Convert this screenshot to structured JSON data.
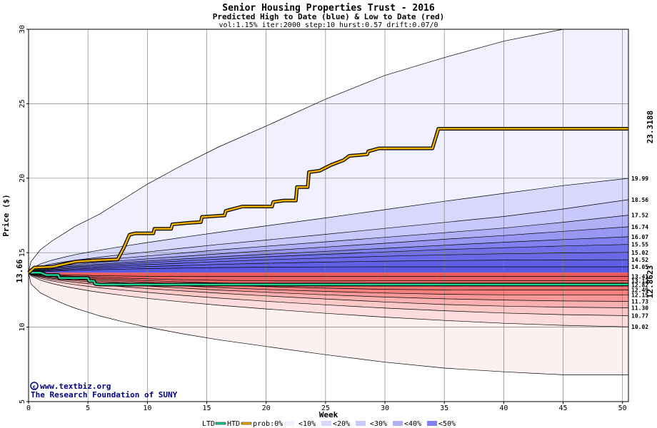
{
  "chart_data": {
    "type": "area",
    "title": "Senior Housing Properties Trust - 2016",
    "subtitle": "Predicted High to Date (blue) &  Low to Date (red)",
    "params": "vol:1.15% iter:2000 step:10 hurst:0.57 drift:0.07/0",
    "xlabel": "Week",
    "ylabel": "Price ($)",
    "xlim": [
      0,
      50.5
    ],
    "ylim": [
      5,
      30
    ],
    "x_ticks": [
      0,
      5,
      10,
      15,
      20,
      25,
      30,
      35,
      40,
      45,
      50
    ],
    "y_ticks": [
      5,
      10,
      15,
      20,
      25,
      30
    ],
    "grid": true,
    "start_price": 13.66,
    "start_price_label": "13.66",
    "right_labels": [
      "19.99",
      "18.56",
      "17.52",
      "16.74",
      "16.07",
      "15.55",
      "15.02",
      "14.52",
      "14.05",
      "13.41",
      "13.12",
      "12.82",
      "12.49",
      "12.15",
      "11.73",
      "11.30",
      "10.77",
      "10.02"
    ],
    "htd_end_label": "23.3188",
    "ltd_end_label": "12.8623",
    "band_weeks": [
      0,
      0.2,
      1,
      2,
      3,
      4,
      5,
      6,
      8,
      10,
      13,
      16,
      20,
      25,
      30,
      35,
      40,
      45,
      50.5
    ],
    "upper_bands": [
      {
        "prob": "outer",
        "values": [
          13.66,
          14.4,
          15.2,
          15.8,
          16.3,
          16.8,
          17.2,
          17.6,
          18.6,
          19.6,
          20.9,
          22.1,
          23.5,
          25.3,
          26.9,
          28.1,
          29.2,
          30.0,
          30.3
        ]
      },
      {
        "prob": "10%",
        "values": [
          13.66,
          13.9,
          14.25,
          14.5,
          14.7,
          14.88,
          15.03,
          15.17,
          15.43,
          15.68,
          16.03,
          16.37,
          16.8,
          17.33,
          17.89,
          18.45,
          18.98,
          19.5,
          19.99
        ]
      },
      {
        "prob": "20%",
        "values": [
          13.66,
          13.82,
          14.08,
          14.25,
          14.38,
          14.5,
          14.6,
          14.7,
          14.88,
          15.05,
          15.3,
          15.55,
          15.85,
          16.23,
          16.63,
          17.03,
          17.43,
          17.93,
          18.56
        ]
      },
      {
        "prob": "30%",
        "values": [
          13.66,
          13.78,
          13.98,
          14.12,
          14.23,
          14.33,
          14.41,
          14.49,
          14.64,
          14.78,
          14.98,
          15.18,
          15.43,
          15.73,
          16.03,
          16.34,
          16.65,
          17.04,
          17.52
        ]
      },
      {
        "prob": "40%",
        "values": [
          13.66,
          13.75,
          13.92,
          14.04,
          14.13,
          14.21,
          14.28,
          14.35,
          14.47,
          14.59,
          14.75,
          14.92,
          15.13,
          15.38,
          15.63,
          15.9,
          16.15,
          16.43,
          16.74
        ]
      },
      {
        "prob": "50%",
        "values": [
          13.66,
          13.73,
          13.87,
          13.97,
          14.05,
          14.12,
          14.18,
          14.24,
          14.34,
          14.44,
          14.58,
          14.72,
          14.89,
          15.09,
          15.29,
          15.5,
          15.7,
          15.88,
          16.07
        ]
      },
      {
        "prob": "60%",
        "values": [
          13.66,
          13.71,
          13.83,
          13.92,
          13.99,
          14.05,
          14.1,
          14.15,
          14.24,
          14.33,
          14.45,
          14.57,
          14.72,
          14.89,
          15.05,
          15.21,
          15.33,
          15.45,
          15.55
        ]
      },
      {
        "prob": "70%",
        "values": [
          13.66,
          13.7,
          13.79,
          13.86,
          13.92,
          13.97,
          14.01,
          14.05,
          14.13,
          14.2,
          14.3,
          14.4,
          14.52,
          14.64,
          14.76,
          14.85,
          14.93,
          14.98,
          15.02
        ]
      },
      {
        "prob": "80%",
        "values": [
          13.66,
          13.68,
          13.75,
          13.81,
          13.86,
          13.9,
          13.93,
          13.96,
          14.02,
          14.07,
          14.14,
          14.21,
          14.29,
          14.37,
          14.43,
          14.47,
          14.5,
          14.51,
          14.52
        ]
      },
      {
        "prob": "90%",
        "values": [
          13.66,
          13.67,
          13.71,
          13.75,
          13.79,
          13.82,
          13.84,
          13.86,
          13.9,
          13.93,
          13.97,
          14.0,
          14.03,
          14.04,
          14.05,
          14.05,
          14.05,
          14.05,
          14.05
        ]
      }
    ],
    "lower_bands": [
      {
        "prob": "outer",
        "values": [
          13.66,
          12.9,
          12.3,
          11.9,
          11.55,
          11.25,
          11.0,
          10.75,
          10.35,
          10.0,
          9.55,
          9.15,
          8.7,
          8.15,
          7.65,
          7.25,
          7.0,
          6.8,
          6.8
        ]
      },
      {
        "prob": "10%",
        "values": [
          13.66,
          13.45,
          13.15,
          12.92,
          12.74,
          12.59,
          12.45,
          12.33,
          12.12,
          11.93,
          11.69,
          11.47,
          11.22,
          10.93,
          10.67,
          10.45,
          10.26,
          10.12,
          10.02
        ]
      },
      {
        "prob": "20%",
        "values": [
          13.66,
          13.5,
          13.27,
          13.1,
          12.96,
          12.84,
          12.74,
          12.64,
          12.48,
          12.33,
          12.13,
          11.95,
          11.74,
          11.5,
          11.28,
          11.1,
          10.95,
          10.84,
          10.77
        ]
      },
      {
        "prob": "30%",
        "values": [
          13.66,
          13.53,
          13.35,
          13.21,
          13.1,
          13.0,
          12.92,
          12.84,
          12.71,
          12.59,
          12.43,
          12.28,
          12.1,
          11.89,
          11.69,
          11.52,
          11.41,
          11.34,
          11.3
        ]
      },
      {
        "prob": "40%",
        "values": [
          13.66,
          13.55,
          13.4,
          13.28,
          13.19,
          13.11,
          13.04,
          12.97,
          12.86,
          12.76,
          12.62,
          12.49,
          12.34,
          12.17,
          12.02,
          11.9,
          11.82,
          11.76,
          11.73
        ]
      },
      {
        "prob": "50%",
        "values": [
          13.66,
          13.57,
          13.44,
          13.34,
          13.26,
          13.19,
          13.13,
          13.07,
          12.98,
          12.89,
          12.77,
          12.66,
          12.53,
          12.4,
          12.29,
          12.21,
          12.17,
          12.15,
          12.15
        ]
      },
      {
        "prob": "60%",
        "values": [
          13.66,
          13.59,
          13.48,
          13.4,
          13.33,
          13.27,
          13.22,
          13.17,
          13.09,
          13.01,
          12.91,
          12.82,
          12.72,
          12.62,
          12.54,
          12.5,
          12.49,
          12.49,
          12.49
        ]
      },
      {
        "prob": "70%",
        "values": [
          13.66,
          13.6,
          13.51,
          13.45,
          13.39,
          13.34,
          13.3,
          13.26,
          13.19,
          13.12,
          13.04,
          12.97,
          12.9,
          12.84,
          12.81,
          12.81,
          12.82,
          12.82,
          12.82
        ]
      },
      {
        "prob": "80%",
        "values": [
          13.66,
          13.61,
          13.54,
          13.49,
          13.45,
          13.41,
          13.38,
          13.35,
          13.29,
          13.24,
          13.18,
          13.14,
          13.11,
          13.1,
          13.11,
          13.12,
          13.12,
          13.12,
          13.12
        ]
      },
      {
        "prob": "90%",
        "values": [
          13.66,
          13.63,
          13.58,
          13.54,
          13.51,
          13.49,
          13.47,
          13.45,
          13.43,
          13.41,
          13.4,
          13.4,
          13.41,
          13.41,
          13.41,
          13.41,
          13.41,
          13.41,
          13.41
        ]
      }
    ],
    "htd": {
      "name": "HTD",
      "color": "#f0b000",
      "points": [
        [
          0,
          13.66
        ],
        [
          0.5,
          14.0
        ],
        [
          2,
          14.05
        ],
        [
          4,
          14.4
        ],
        [
          6,
          14.5
        ],
        [
          7.5,
          14.55
        ],
        [
          8,
          15.3
        ],
        [
          8.5,
          16.2
        ],
        [
          9,
          16.3
        ],
        [
          10.5,
          16.3
        ],
        [
          10.6,
          16.6
        ],
        [
          12,
          16.6
        ],
        [
          12.1,
          16.9
        ],
        [
          13.5,
          17.0
        ],
        [
          14.5,
          17.05
        ],
        [
          14.6,
          17.4
        ],
        [
          16.5,
          17.5
        ],
        [
          16.6,
          17.8
        ],
        [
          18,
          18.1
        ],
        [
          20.5,
          18.1
        ],
        [
          20.6,
          18.4
        ],
        [
          21.5,
          18.5
        ],
        [
          22.5,
          18.5
        ],
        [
          22.6,
          19.4
        ],
        [
          23.5,
          19.4
        ],
        [
          23.6,
          20.4
        ],
        [
          24.5,
          20.5
        ],
        [
          25.5,
          20.9
        ],
        [
          26.5,
          21.2
        ],
        [
          27,
          21.5
        ],
        [
          28.5,
          21.6
        ],
        [
          28.6,
          21.8
        ],
        [
          29.5,
          22.0
        ],
        [
          34,
          22.0
        ],
        [
          34.5,
          23.32
        ],
        [
          50.5,
          23.32
        ]
      ]
    },
    "ltd": {
      "name": "LTD",
      "color": "#20d090",
      "points": [
        [
          0,
          13.66
        ],
        [
          1,
          13.66
        ],
        [
          1.5,
          13.5
        ],
        [
          2.5,
          13.5
        ],
        [
          2.6,
          13.3
        ],
        [
          5,
          13.3
        ],
        [
          5.1,
          13.1
        ],
        [
          5.5,
          13.1
        ],
        [
          5.6,
          12.9
        ],
        [
          6,
          12.86
        ],
        [
          50.5,
          12.86
        ]
      ]
    },
    "legend": {
      "ltd": "LTD",
      "htd": "HTD",
      "prob": "prob:0%",
      "p10": "<10%",
      "p20": "<20%",
      "p30": "<30%",
      "p40": "<40%",
      "p50": "<50%"
    },
    "colors": {
      "upper_fills": [
        "#f0f0fe",
        "#d8d8fc",
        "#c8c8fa",
        "#b0b0f7",
        "#9898f3",
        "#8080ee",
        "#7070ea",
        "#6a6ae8",
        "#6060e4",
        "#5858e0"
      ],
      "lower_fills": [
        "#fdf0f0",
        "#fcdcdc",
        "#fbc8c8",
        "#f9b0b0",
        "#f79898",
        "#f48080",
        "#f27070",
        "#f06a6a",
        "#ee6262",
        "#ec5a5a"
      ],
      "htd_end_label": "#a08000",
      "ltd_end_label": "#108060"
    }
  },
  "credit": {
    "site": "www.textbiz.org",
    "org": "The Research Foundation of SUNY"
  }
}
